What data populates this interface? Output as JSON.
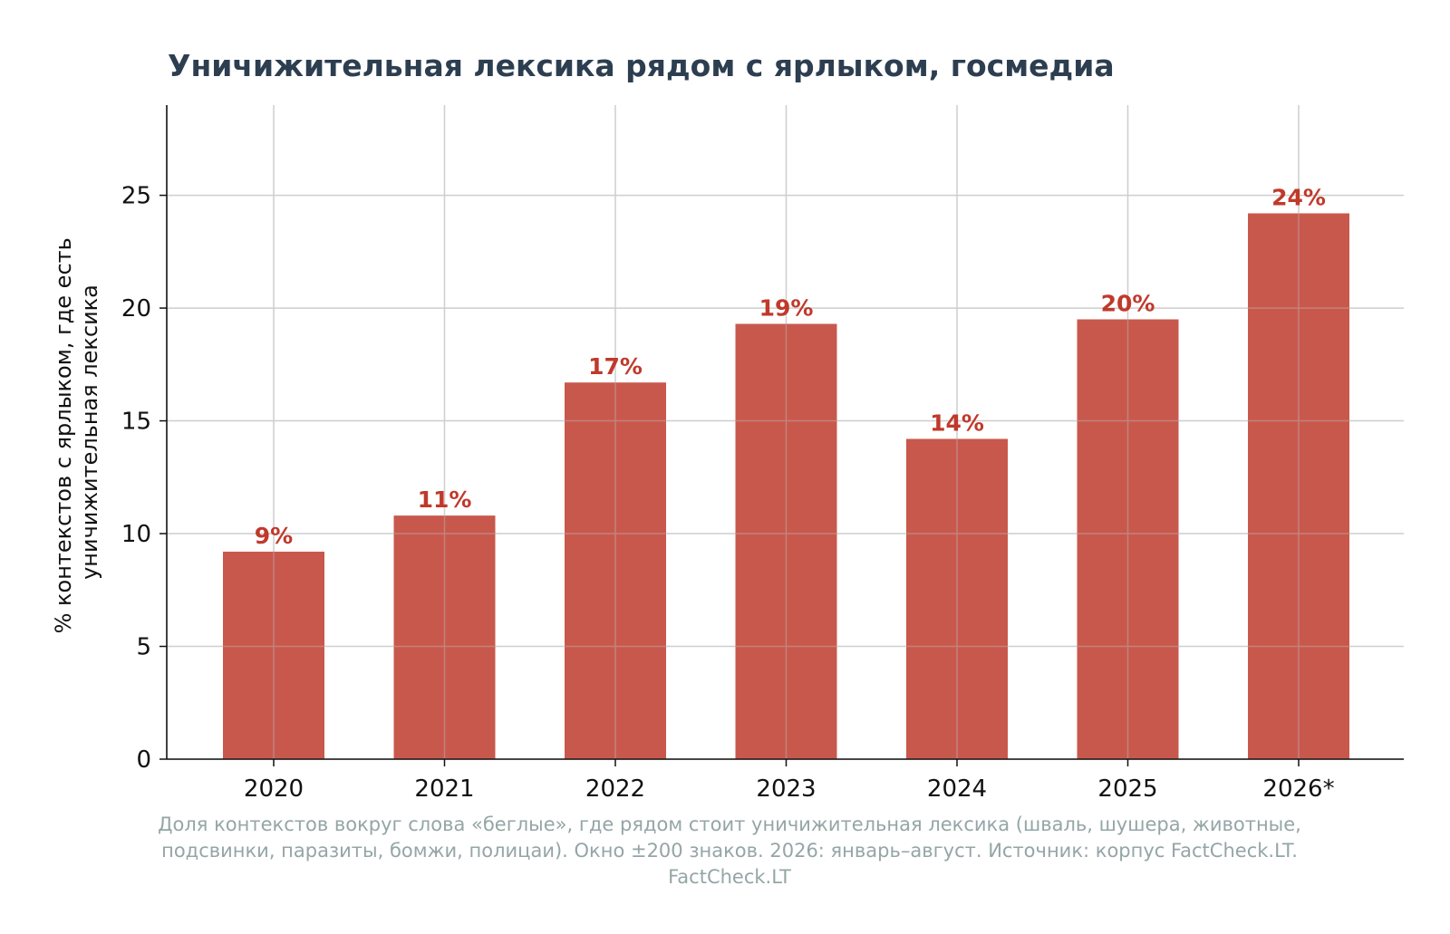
{
  "chart_data": {
    "type": "bar",
    "title": "Уничижительная лексика рядом с ярлыком, госмедиа",
    "ylabel_lines": [
      "% контекстов с ярлыком, где есть",
      "уничижительная лексика"
    ],
    "xlabel": "",
    "categories": [
      "2020",
      "2021",
      "2022",
      "2023",
      "2024",
      "2025",
      "2026*"
    ],
    "values": [
      9.2,
      10.8,
      16.7,
      19.3,
      14.2,
      19.5,
      24.2
    ],
    "data_labels": [
      "9%",
      "11%",
      "17%",
      "19%",
      "14%",
      "20%",
      "24%"
    ],
    "ylim": [
      0,
      29
    ],
    "yticks": [
      0,
      5,
      10,
      15,
      20,
      25
    ],
    "grid": true,
    "bar_color": "#c9584c",
    "label_color": "#c0392b",
    "title_color": "#2c3e50",
    "caption_lines": [
      "Доля контекстов вокруг слова «беглые», где рядом стоит уничижительная лексика (шваль, шушера, животные,",
      "подсвинки, паразиты, бомжи, полицаи). Окно ±200 знаков. 2026: январь–август. Источник: корпус FactCheck.LT.",
      "FactCheck.LT"
    ]
  }
}
